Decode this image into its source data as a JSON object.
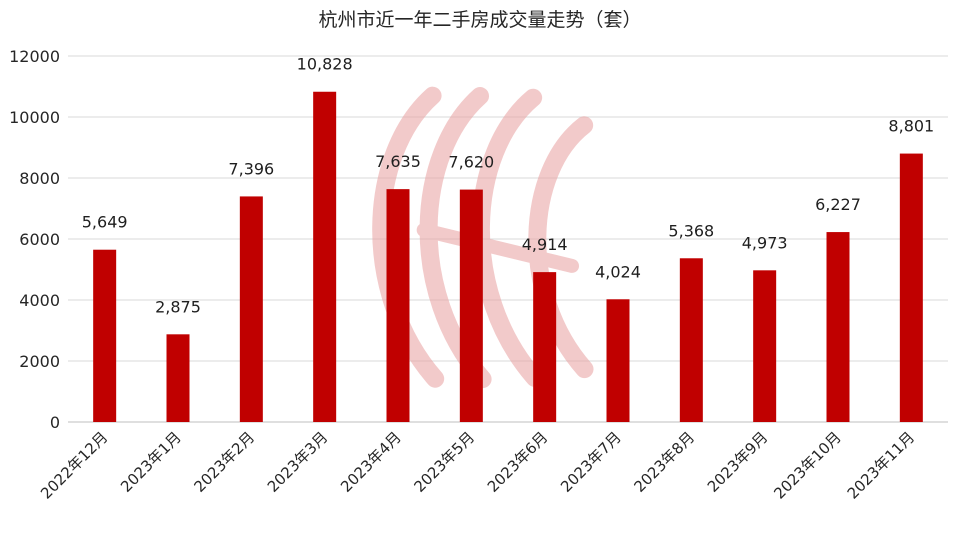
{
  "chart_data": {
    "type": "bar",
    "title": "杭州市近一年二手房成交量走势（套）",
    "xlabel": "",
    "ylabel": "",
    "categories": [
      "2022年12月",
      "2023年1月",
      "2023年2月",
      "2023年3月",
      "2023年4月",
      "2023年5月",
      "2023年6月",
      "2023年7月",
      "2023年8月",
      "2023年9月",
      "2023年10月",
      "2023年11月"
    ],
    "values": [
      5649,
      2875,
      7396,
      10828,
      7635,
      7620,
      4914,
      4024,
      5368,
      4973,
      6227,
      8801
    ],
    "data_labels": [
      "5,649",
      "2,875",
      "7,396",
      "10,828",
      "7,635",
      "7,620",
      "4,914",
      "4,024",
      "5,368",
      "4,973",
      "6,227",
      "8,801"
    ],
    "ylim": [
      0,
      12000
    ],
    "yticks": [
      0,
      2000,
      4000,
      6000,
      8000,
      10000,
      12000
    ],
    "grid": true,
    "legend": "none",
    "colors": {
      "bar": "#c00000",
      "grid": "#d9d9d9",
      "text": "#262626",
      "watermark": "#e8a0a0"
    }
  }
}
